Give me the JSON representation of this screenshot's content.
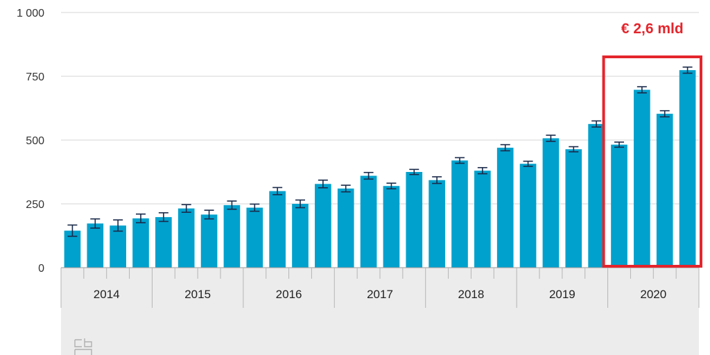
{
  "chart_data": {
    "type": "bar",
    "title": "",
    "xlabel": "",
    "ylabel": "",
    "ylim": [
      0,
      1000
    ],
    "yticks": [
      0,
      250,
      500,
      750,
      1000
    ],
    "ytick_labels": [
      "0",
      "250",
      "500",
      "750",
      "1 000"
    ],
    "grid": true,
    "bar_color": "#00a1cd",
    "error_bar_color": "#1a2a4a",
    "years": [
      "2014",
      "2015",
      "2016",
      "2017",
      "2018",
      "2019",
      "2020"
    ],
    "categories": [
      "2014 Q1",
      "2014 Q2",
      "2014 Q3",
      "2014 Q4",
      "2015 Q1",
      "2015 Q2",
      "2015 Q3",
      "2015 Q4",
      "2016 Q1",
      "2016 Q2",
      "2016 Q3",
      "2016 Q4",
      "2017 Q1",
      "2017 Q2",
      "2017 Q3",
      "2017 Q4",
      "2018 Q1",
      "2018 Q2",
      "2018 Q3",
      "2018 Q4",
      "2019 Q1",
      "2019 Q2",
      "2019 Q3",
      "2019 Q4",
      "2020 Q1",
      "2020 Q2",
      "2020 Q3",
      "2020 Q4"
    ],
    "values": [
      145,
      173,
      165,
      193,
      198,
      232,
      208,
      245,
      235,
      300,
      250,
      328,
      310,
      360,
      320,
      375,
      343,
      420,
      380,
      470,
      407,
      507,
      464,
      563,
      482,
      697,
      603,
      774
    ],
    "error_margins": [
      22,
      18,
      22,
      17,
      17,
      15,
      17,
      16,
      14,
      14,
      15,
      15,
      13,
      13,
      11,
      10,
      13,
      11,
      12,
      12,
      10,
      12,
      10,
      12,
      10,
      12,
      12,
      12
    ],
    "annotation": {
      "text": "€ 2,6 mld",
      "color": "#e4252c",
      "highlight_from_year": "2020"
    }
  }
}
